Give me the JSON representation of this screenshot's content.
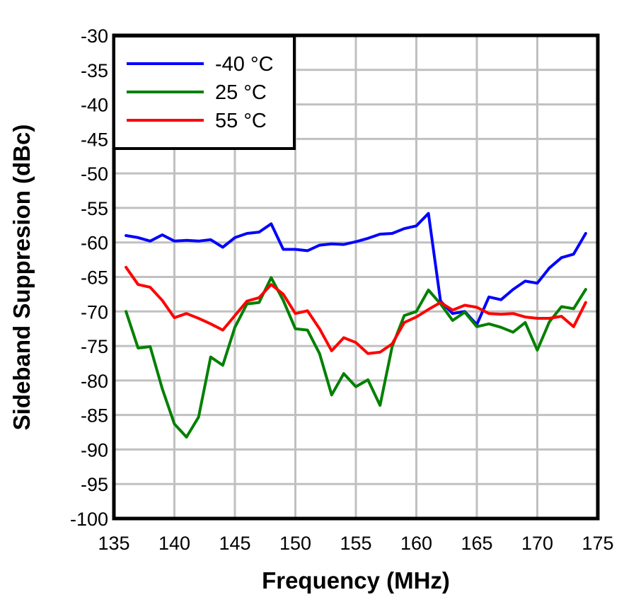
{
  "chart_data": {
    "type": "line",
    "title": "",
    "xlabel": "Frequency (MHz)",
    "ylabel": "Sideband Suppresion (dBc)",
    "xlim": [
      135,
      175
    ],
    "ylim": [
      -100,
      -30
    ],
    "x_ticks": [
      135,
      140,
      145,
      150,
      155,
      160,
      165,
      170,
      175
    ],
    "y_ticks": [
      -30,
      -35,
      -40,
      -45,
      -50,
      -55,
      -60,
      -65,
      -70,
      -75,
      -80,
      -85,
      -90,
      -95,
      -100
    ],
    "grid": true,
    "legend_position": "upper left",
    "x": [
      136,
      137,
      138,
      139,
      140,
      141,
      142,
      143,
      144,
      145,
      146,
      147,
      148,
      149,
      150,
      151,
      152,
      153,
      154,
      155,
      156,
      157,
      158,
      159,
      160,
      161,
      162,
      163,
      164,
      165,
      166,
      167,
      168,
      169,
      170,
      171,
      172,
      173,
      174
    ],
    "series": [
      {
        "name": "-40 °C",
        "color": "#0000ff",
        "values": [
          -59.0,
          -59.3,
          -59.8,
          -58.9,
          -59.8,
          -59.7,
          -59.8,
          -59.6,
          -60.7,
          -59.3,
          -58.7,
          -58.5,
          -57.3,
          -61.0,
          -61.0,
          -61.2,
          -60.4,
          -60.2,
          -60.3,
          -59.9,
          -59.4,
          -58.8,
          -58.7,
          -58.0,
          -57.6,
          -55.8,
          -68.5,
          -70.3,
          -70.0,
          -71.9,
          -67.9,
          -68.3,
          -66.8,
          -65.6,
          -65.9,
          -63.7,
          -62.2,
          -61.7,
          -58.7
        ]
      },
      {
        "name": "25 °C",
        "color": "#008000",
        "values": [
          -70.0,
          -75.3,
          -75.1,
          -81.2,
          -86.3,
          -88.2,
          -85.3,
          -76.6,
          -77.8,
          -72.3,
          -68.9,
          -68.7,
          -65.1,
          -68.4,
          -72.5,
          -72.7,
          -76.1,
          -82.1,
          -79.0,
          -80.9,
          -79.9,
          -83.6,
          -75.1,
          -70.6,
          -70.0,
          -66.9,
          -68.9,
          -71.3,
          -70.1,
          -72.2,
          -71.8,
          -72.3,
          -73.0,
          -71.6,
          -75.6,
          -71.5,
          -69.3,
          -69.6,
          -66.8
        ]
      },
      {
        "name": "55 °C",
        "color": "#ff0000",
        "values": [
          -63.6,
          -66.1,
          -66.5,
          -68.4,
          -70.9,
          -70.3,
          -71.0,
          -71.8,
          -72.7,
          -70.6,
          -68.5,
          -68.0,
          -66.1,
          -67.5,
          -70.3,
          -69.9,
          -72.5,
          -75.7,
          -73.8,
          -74.5,
          -76.1,
          -75.9,
          -74.7,
          -71.6,
          -70.8,
          -69.7,
          -68.7,
          -69.8,
          -69.1,
          -69.4,
          -70.3,
          -70.4,
          -70.3,
          -70.8,
          -71.0,
          -71.0,
          -70.7,
          -72.2,
          -68.7
        ]
      }
    ]
  }
}
